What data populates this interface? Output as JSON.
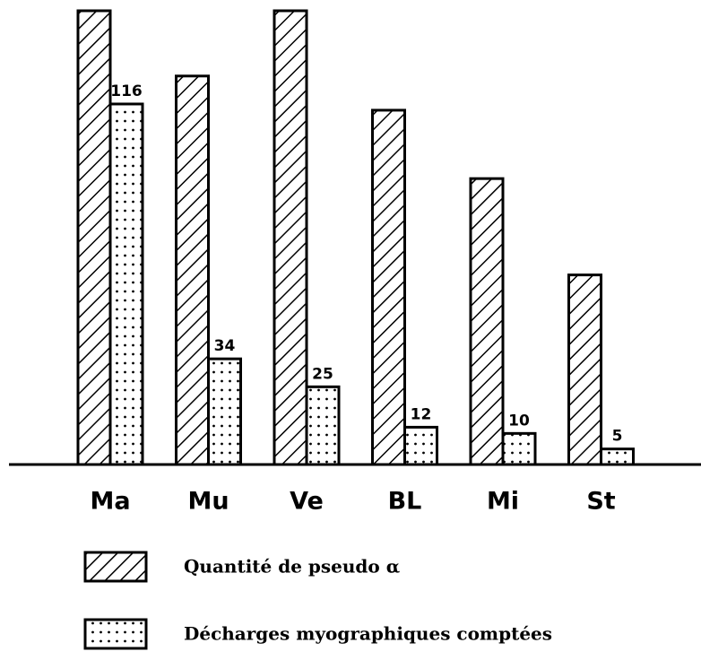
{
  "chart_data": {
    "type": "bar",
    "categories": [
      "Ma",
      "Mu",
      "Ve",
      "BL",
      "Mi",
      "St"
    ],
    "series": [
      {
        "name": "Quantité de pseudo α",
        "color": "#000000",
        "pattern": "hatch",
        "values": [
          146,
          125,
          146,
          114,
          92,
          61
        ]
      },
      {
        "name": "Décharges myographiques comptées",
        "color": "#000000",
        "pattern": "dots",
        "values": [
          116,
          34,
          25,
          12,
          10,
          5
        ]
      }
    ],
    "ylim": [
      0,
      146
    ],
    "value_labels_series": 1
  }
}
